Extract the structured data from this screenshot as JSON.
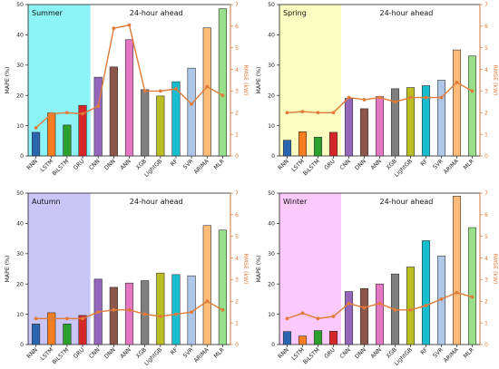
{
  "chart_data": [
    {
      "type": "bar",
      "title": "",
      "season_label": "Summer",
      "horizon_label": "24-hour ahead",
      "categories": [
        "RNN",
        "LSTM",
        "BiLSTM",
        "GRU",
        "CNN",
        "DNN",
        "ANN",
        "XGB",
        "LightGB",
        "RF",
        "SVR",
        "ARIMA",
        "MLR"
      ],
      "series": [
        {
          "name": "MAPE (%)",
          "axis": "left",
          "values": [
            7.8,
            14.2,
            10.2,
            16.7,
            26.0,
            29.4,
            38.4,
            21.9,
            19.8,
            24.5,
            29.0,
            42.3,
            48.6
          ]
        },
        {
          "name": "RMSE (kW)",
          "axis": "right",
          "values": [
            1.3,
            1.95,
            2.0,
            1.95,
            2.3,
            5.9,
            6.05,
            3.0,
            3.0,
            3.1,
            2.4,
            3.2,
            2.8
          ]
        }
      ],
      "ylabel": "MAPE (%)",
      "ylabel_right": "RMSE (kW)",
      "ylim": [
        0,
        50
      ],
      "ylim_right": [
        0,
        7
      ],
      "yticks": [
        "0",
        "10",
        "20",
        "30",
        "40",
        "50"
      ],
      "yticks_right": [
        "0",
        "1",
        "2",
        "3",
        "4",
        "5",
        "6",
        "7"
      ],
      "shaded_region_color": "#7ff3f5"
    },
    {
      "type": "bar",
      "title": "",
      "season_label": "Spring",
      "horizon_label": "24-hour ahead",
      "categories": [
        "RNN",
        "LSTM",
        "BiLSTM",
        "GRU",
        "CNN",
        "DNN",
        "ANN",
        "XGB",
        "LightGB",
        "RF",
        "SVR",
        "ARIMA",
        "MLR"
      ],
      "series": [
        {
          "name": "MAPE (%)",
          "axis": "left",
          "values": [
            5.2,
            8.0,
            6.2,
            7.8,
            19.0,
            15.6,
            19.6,
            22.2,
            22.6,
            23.2,
            25.0,
            35.0,
            33.0
          ]
        },
        {
          "name": "RMSE (kW)",
          "axis": "right",
          "values": [
            2.0,
            2.05,
            2.0,
            2.0,
            2.7,
            2.6,
            2.7,
            2.5,
            2.7,
            2.7,
            2.7,
            3.4,
            3.0
          ]
        }
      ],
      "ylabel": "MAPE (%)",
      "ylabel_right": "RMSE (kW)",
      "ylim": [
        0,
        50
      ],
      "ylim_right": [
        0,
        7
      ],
      "yticks": [
        "0",
        "10",
        "20",
        "30",
        "40",
        "50"
      ],
      "yticks_right": [
        "0",
        "1",
        "2",
        "3",
        "4",
        "5",
        "6",
        "7"
      ],
      "shaded_region_color": "#fbfcb8"
    },
    {
      "type": "bar",
      "title": "",
      "season_label": "Autumn",
      "horizon_label": "24-hour ahead",
      "categories": [
        "RNN",
        "LSTM",
        "BiLSTM",
        "GRU",
        "CNN",
        "DNN",
        "ANN",
        "XGB",
        "LightGB",
        "RF",
        "SVR",
        "ARIMA",
        "MLR"
      ],
      "series": [
        {
          "name": "MAPE (%)",
          "axis": "left",
          "values": [
            6.8,
            10.5,
            6.8,
            9.6,
            21.6,
            18.9,
            20.3,
            21.1,
            23.6,
            23.1,
            22.7,
            39.3,
            37.8
          ]
        },
        {
          "name": "RMSE (kW)",
          "axis": "right",
          "values": [
            1.2,
            1.2,
            1.2,
            1.2,
            1.5,
            1.6,
            1.6,
            1.4,
            1.3,
            1.4,
            1.5,
            2.0,
            1.6
          ]
        }
      ],
      "ylabel": "MAPE (%)",
      "ylabel_right": "RMSE (kW)",
      "ylim": [
        0,
        50
      ],
      "ylim_right": [
        0,
        7
      ],
      "yticks": [
        "0",
        "10",
        "20",
        "30",
        "40",
        "50"
      ],
      "yticks_right": [
        "0",
        "1",
        "2",
        "3",
        "4",
        "5",
        "6",
        "7"
      ],
      "shaded_region_color": "#c3c0f6"
    },
    {
      "type": "bar",
      "title": "",
      "season_label": "Winter",
      "horizon_label": "24-hour ahead",
      "categories": [
        "RNN",
        "LSTM",
        "BiLSTM",
        "GRU",
        "CNN",
        "DNN",
        "ANN",
        "XGB",
        "LightGB",
        "RF",
        "SVR",
        "ARIMA",
        "MLR"
      ],
      "series": [
        {
          "name": "MAPE (%)",
          "axis": "left",
          "values": [
            4.3,
            2.8,
            4.6,
            4.4,
            17.5,
            18.5,
            20.0,
            23.3,
            25.6,
            34.3,
            29.2,
            49.0,
            38.6
          ]
        },
        {
          "name": "RMSE (kW)",
          "axis": "right",
          "values": [
            1.2,
            1.45,
            1.2,
            1.3,
            1.9,
            1.7,
            1.9,
            1.6,
            1.6,
            1.8,
            2.1,
            2.4,
            2.2
          ]
        }
      ],
      "ylabel": "MAPE (%)",
      "ylabel_right": "RMSE (kW)",
      "ylim": [
        0,
        50
      ],
      "ylim_right": [
        0,
        7
      ],
      "yticks": [
        "0",
        "10",
        "20",
        "30",
        "40",
        "50"
      ],
      "yticks_right": [
        "0",
        "1",
        "2",
        "3",
        "4",
        "5",
        "6",
        "7"
      ],
      "shaded_region_color": "#fcc3fb"
    }
  ],
  "colors": {
    "bars": [
      "#2a66b0",
      "#f57e20",
      "#2ca02c",
      "#d62728",
      "#9467bd",
      "#8c564b",
      "#e377c2",
      "#7f7f7f",
      "#bcbd22",
      "#17becf",
      "#aec7e8",
      "#ffbb78",
      "#98df8a"
    ],
    "rmse_line": "#e07b39"
  }
}
